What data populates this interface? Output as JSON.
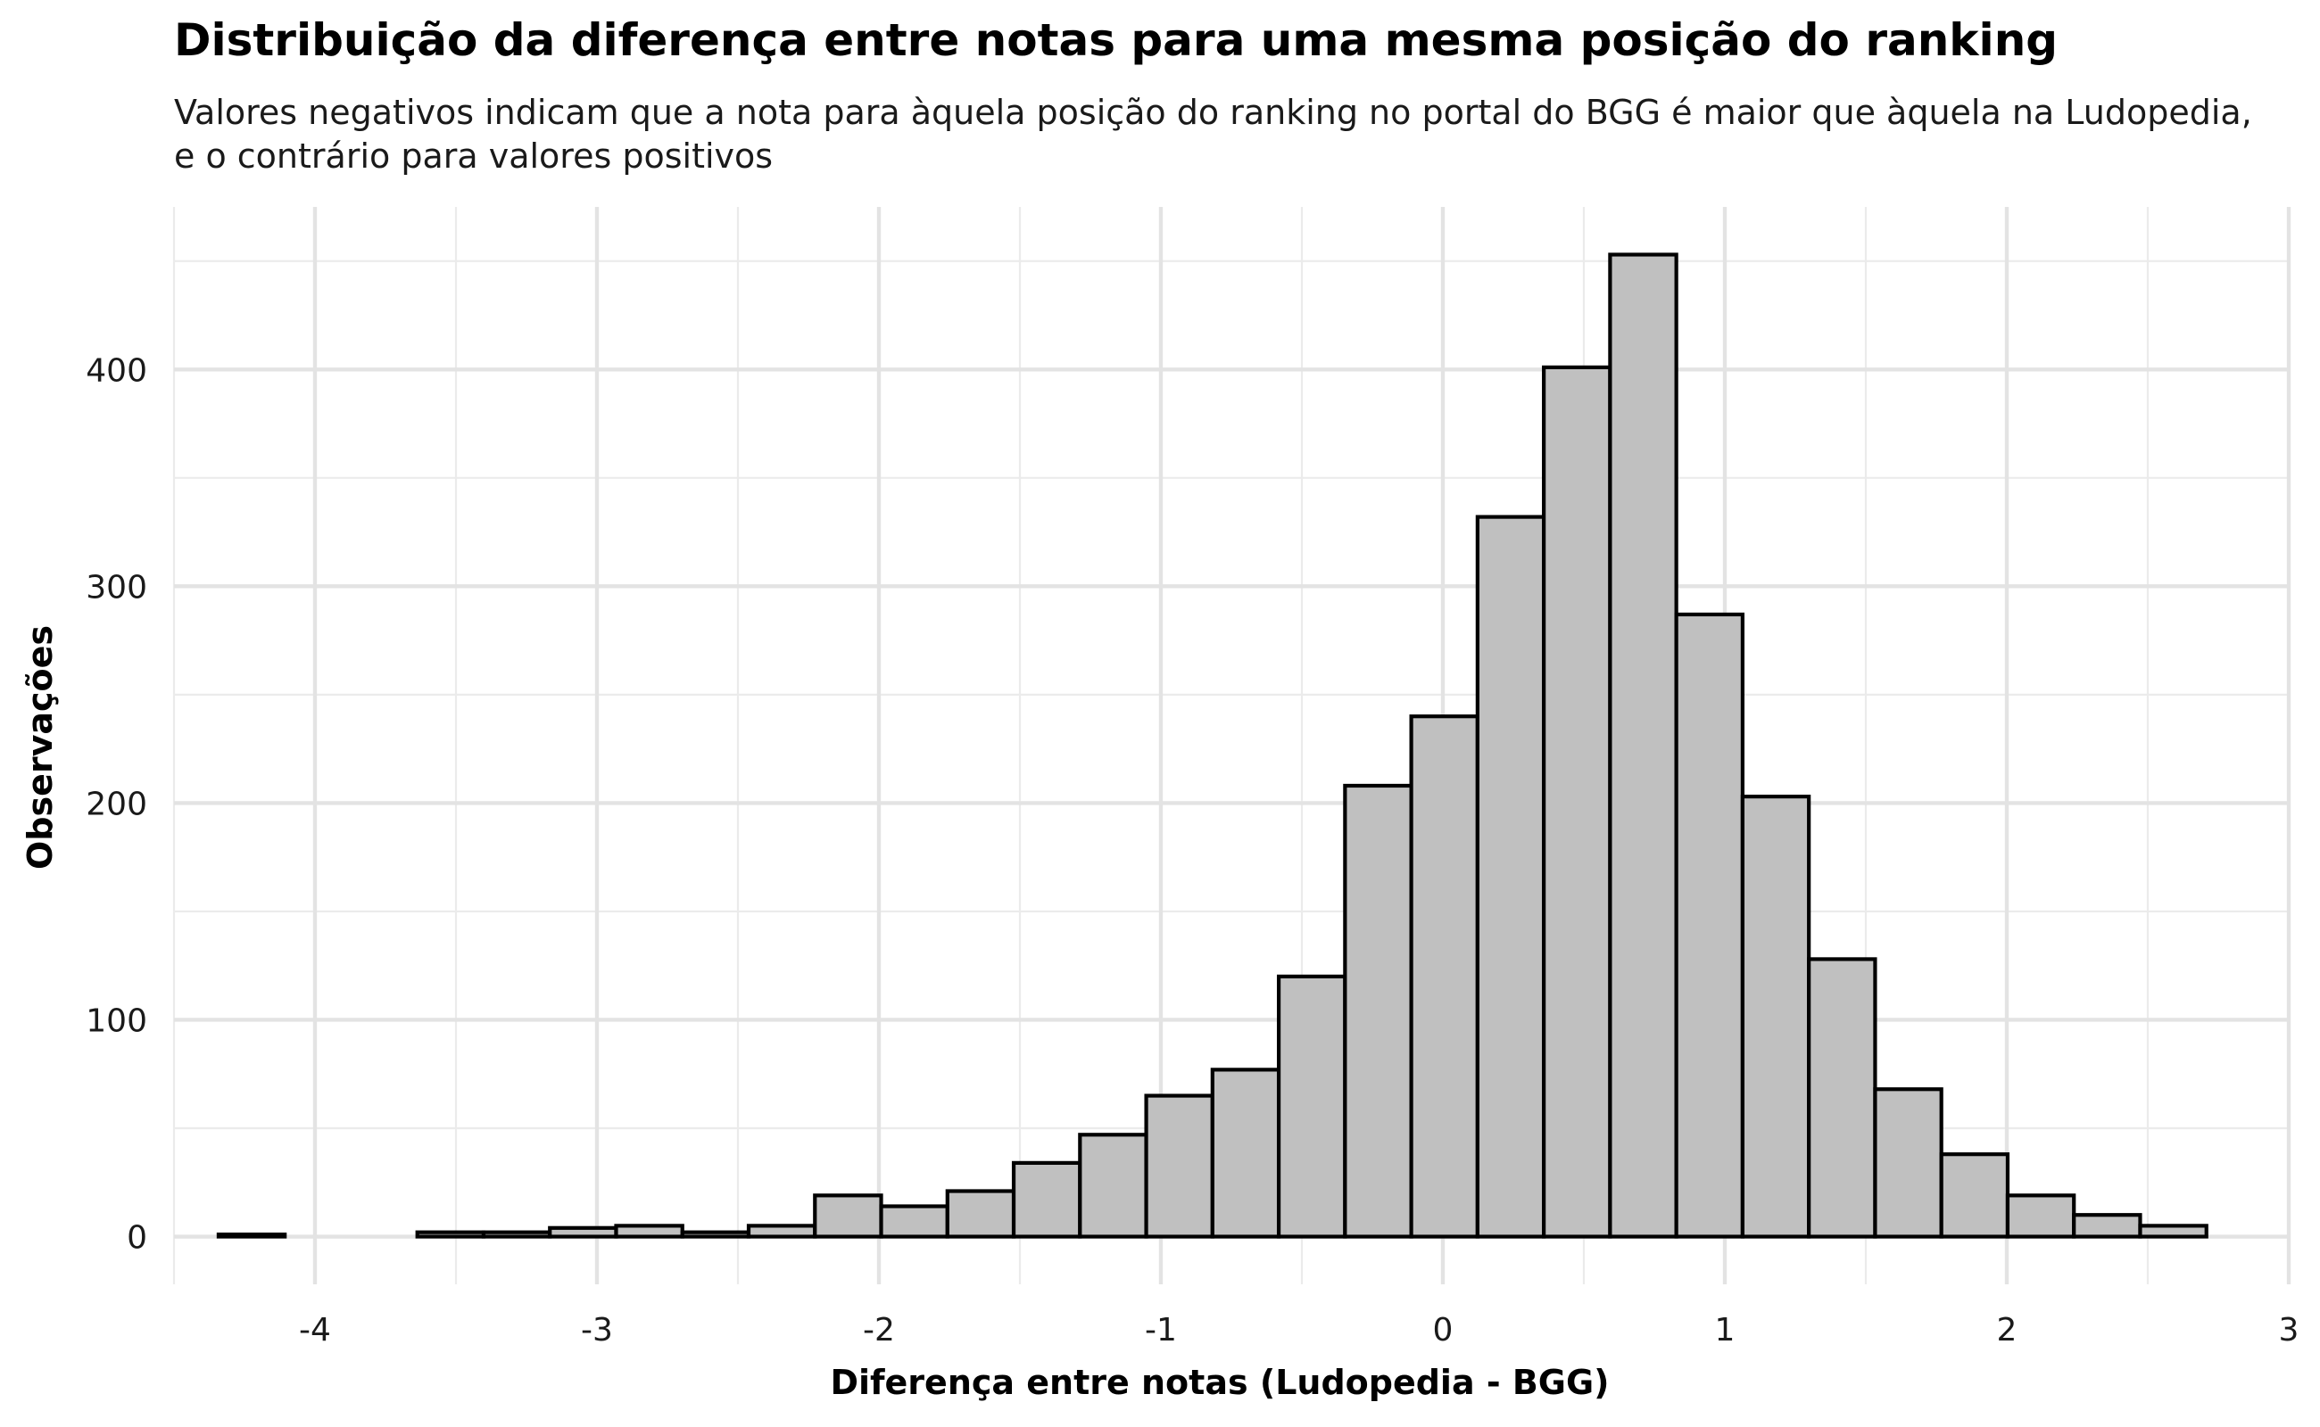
{
  "chart_data": {
    "type": "bar",
    "title": "Distribuição da diferença entre notas para uma mesma posição do ranking",
    "subtitle": [
      "Valores negativos indicam que a nota para àquela posição do ranking no portal do BGG é maior que àquela na Ludopedia,",
      "e o contrário para valores positivos"
    ],
    "xlabel": "Diferença entre notas (Ludopedia - BGG)",
    "ylabel": "Observações",
    "xlim": [
      -4.5,
      3.0
    ],
    "ylim": [
      -22,
      475
    ],
    "x_ticks": [
      -4,
      -3,
      -2,
      -1,
      0,
      1,
      2,
      3
    ],
    "x_tick_labels": [
      "-4",
      "-3",
      "-2",
      "-1",
      "0",
      "1",
      "2",
      "3"
    ],
    "y_ticks": [
      0,
      100,
      200,
      300,
      400
    ],
    "y_tick_labels": [
      "0",
      "100",
      "200",
      "300",
      "400"
    ],
    "grid": true,
    "legend": "none",
    "bar_fill": "#c0c0c0",
    "bar_stroke": "#000000",
    "bins": [
      {
        "x0": -4.342,
        "x1": -4.107,
        "count": 1
      },
      {
        "x0": -4.107,
        "x1": -3.872,
        "count": 0
      },
      {
        "x0": -3.872,
        "x1": -3.637,
        "count": 0
      },
      {
        "x0": -3.637,
        "x1": -3.402,
        "count": 2
      },
      {
        "x0": -3.402,
        "x1": -3.167,
        "count": 2
      },
      {
        "x0": -3.167,
        "x1": -2.932,
        "count": 4
      },
      {
        "x0": -2.932,
        "x1": -2.697,
        "count": 5
      },
      {
        "x0": -2.697,
        "x1": -2.462,
        "count": 2
      },
      {
        "x0": -2.462,
        "x1": -2.227,
        "count": 5
      },
      {
        "x0": -2.227,
        "x1": -1.992,
        "count": 19
      },
      {
        "x0": -1.992,
        "x1": -1.757,
        "count": 14
      },
      {
        "x0": -1.757,
        "x1": -1.522,
        "count": 21
      },
      {
        "x0": -1.522,
        "x1": -1.287,
        "count": 34
      },
      {
        "x0": -1.287,
        "x1": -1.052,
        "count": 47
      },
      {
        "x0": -1.052,
        "x1": -0.817,
        "count": 65
      },
      {
        "x0": -0.817,
        "x1": -0.582,
        "count": 77
      },
      {
        "x0": -0.582,
        "x1": -0.347,
        "count": 120
      },
      {
        "x0": -0.347,
        "x1": -0.112,
        "count": 208
      },
      {
        "x0": -0.112,
        "x1": 0.123,
        "count": 240
      },
      {
        "x0": 0.123,
        "x1": 0.358,
        "count": 332
      },
      {
        "x0": 0.358,
        "x1": 0.593,
        "count": 401
      },
      {
        "x0": 0.593,
        "x1": 0.828,
        "count": 453
      },
      {
        "x0": 0.828,
        "x1": 1.063,
        "count": 287
      },
      {
        "x0": 1.063,
        "x1": 1.298,
        "count": 203
      },
      {
        "x0": 1.298,
        "x1": 1.533,
        "count": 128
      },
      {
        "x0": 1.533,
        "x1": 1.768,
        "count": 68
      },
      {
        "x0": 1.768,
        "x1": 2.003,
        "count": 38
      },
      {
        "x0": 2.003,
        "x1": 2.238,
        "count": 19
      },
      {
        "x0": 2.238,
        "x1": 2.473,
        "count": 10
      },
      {
        "x0": 2.473,
        "x1": 2.708,
        "count": 5
      }
    ]
  }
}
